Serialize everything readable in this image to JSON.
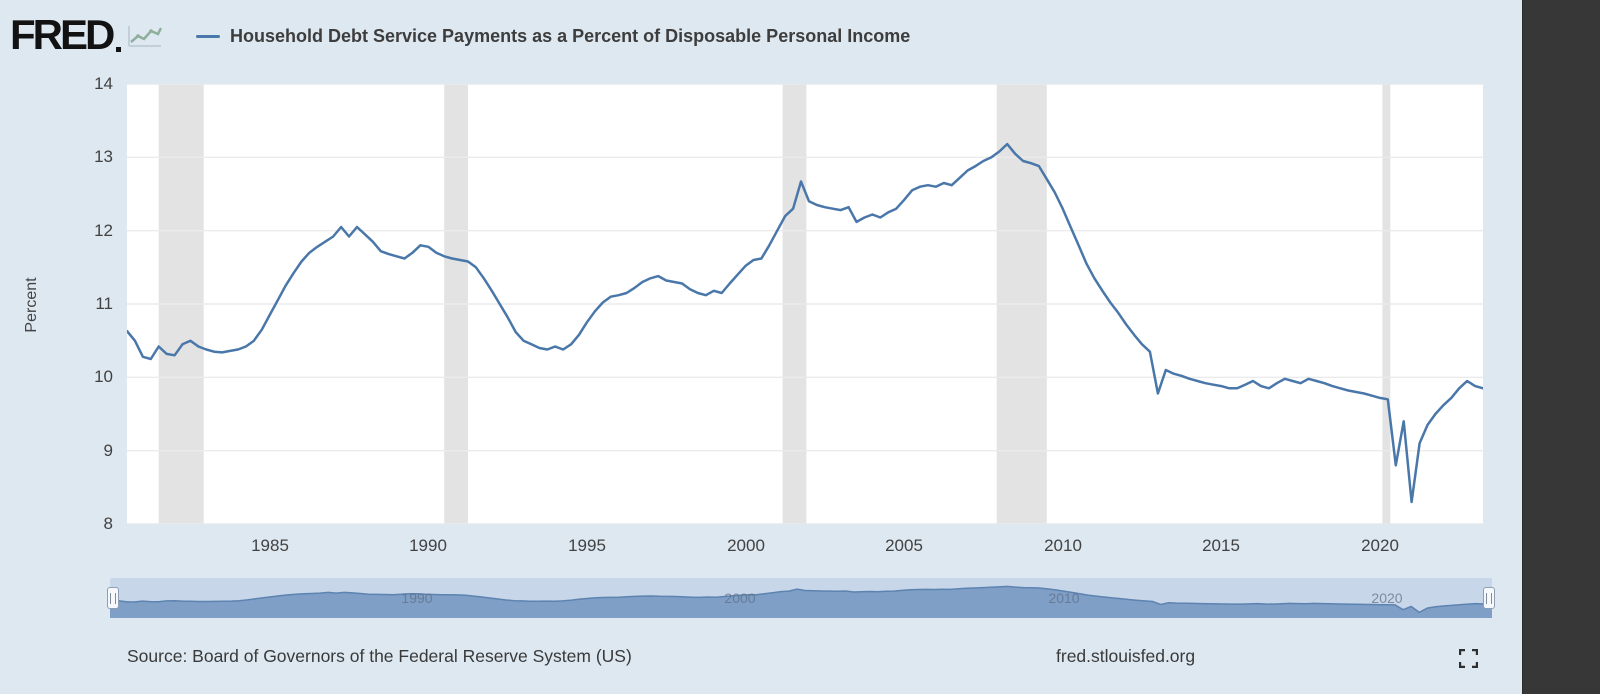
{
  "header": {
    "logo_text": "FRED"
  },
  "chart_data": {
    "type": "line",
    "title": "Household Debt Service Payments as a Percent of Disposable Personal Income",
    "ylabel": "Percent",
    "ylim": [
      8,
      14
    ],
    "yticks": [
      8,
      9,
      10,
      11,
      12,
      13,
      14
    ],
    "xticks": [
      1985,
      1990,
      1995,
      2000,
      2005,
      2010,
      2015,
      2020
    ],
    "x_range": [
      1980.5,
      2023.25
    ],
    "x_start": 1980.5,
    "x_step": 0.25,
    "grid": true,
    "line_color": "#4a77a9",
    "recession_band_color": "#e3e3e3",
    "recessions": [
      [
        1981.5,
        1982.92
      ],
      [
        1990.5,
        1991.25
      ],
      [
        2001.17,
        2001.92
      ],
      [
        2007.92,
        2009.5
      ],
      [
        2020.08,
        2020.33
      ]
    ],
    "values": [
      10.63,
      10.5,
      10.28,
      10.25,
      10.42,
      10.32,
      10.3,
      10.45,
      10.5,
      10.42,
      10.38,
      10.35,
      10.34,
      10.36,
      10.38,
      10.42,
      10.5,
      10.65,
      10.85,
      11.05,
      11.25,
      11.42,
      11.58,
      11.7,
      11.78,
      11.85,
      11.92,
      12.05,
      11.92,
      12.05,
      11.95,
      11.85,
      11.72,
      11.68,
      11.65,
      11.62,
      11.7,
      11.8,
      11.78,
      11.7,
      11.65,
      11.62,
      11.6,
      11.58,
      11.5,
      11.35,
      11.18,
      11.0,
      10.82,
      10.62,
      10.5,
      10.45,
      10.4,
      10.38,
      10.42,
      10.38,
      10.45,
      10.58,
      10.75,
      10.9,
      11.02,
      11.1,
      11.12,
      11.15,
      11.22,
      11.3,
      11.35,
      11.38,
      11.32,
      11.3,
      11.28,
      11.2,
      11.15,
      11.12,
      11.18,
      11.15,
      11.28,
      11.4,
      11.52,
      11.6,
      11.62,
      11.8,
      12.0,
      12.2,
      12.3,
      12.67,
      12.4,
      12.35,
      12.32,
      12.3,
      12.28,
      12.32,
      12.12,
      12.18,
      12.22,
      12.18,
      12.25,
      12.3,
      12.42,
      12.55,
      12.6,
      12.62,
      12.6,
      12.65,
      12.62,
      12.72,
      12.82,
      12.88,
      12.95,
      13.0,
      13.08,
      13.18,
      13.05,
      12.95,
      12.92,
      12.88,
      12.7,
      12.52,
      12.3,
      12.05,
      11.8,
      11.55,
      11.35,
      11.18,
      11.02,
      10.88,
      10.72,
      10.58,
      10.45,
      10.35,
      9.78,
      10.1,
      10.05,
      10.02,
      9.98,
      9.95,
      9.92,
      9.9,
      9.88,
      9.85,
      9.85,
      9.9,
      9.95,
      9.88,
      9.85,
      9.92,
      9.98,
      9.95,
      9.92,
      9.98,
      9.95,
      9.92,
      9.88,
      9.85,
      9.82,
      9.8,
      9.78,
      9.75,
      9.72,
      9.7,
      8.8,
      9.4,
      8.3,
      9.1,
      9.35,
      9.5,
      9.62,
      9.72,
      9.85,
      9.95,
      9.88,
      9.85
    ]
  },
  "navigator": {
    "year_labels": [
      1990,
      2000,
      2010,
      2020
    ],
    "background": "#c7d6e8",
    "area_fill": "#7f9fc6",
    "area_line": "#5d83b0"
  },
  "footer": {
    "source_text": "Source: Board of Governors of the Federal Reserve System (US)",
    "site_url": "fred.stlouisfed.org"
  }
}
